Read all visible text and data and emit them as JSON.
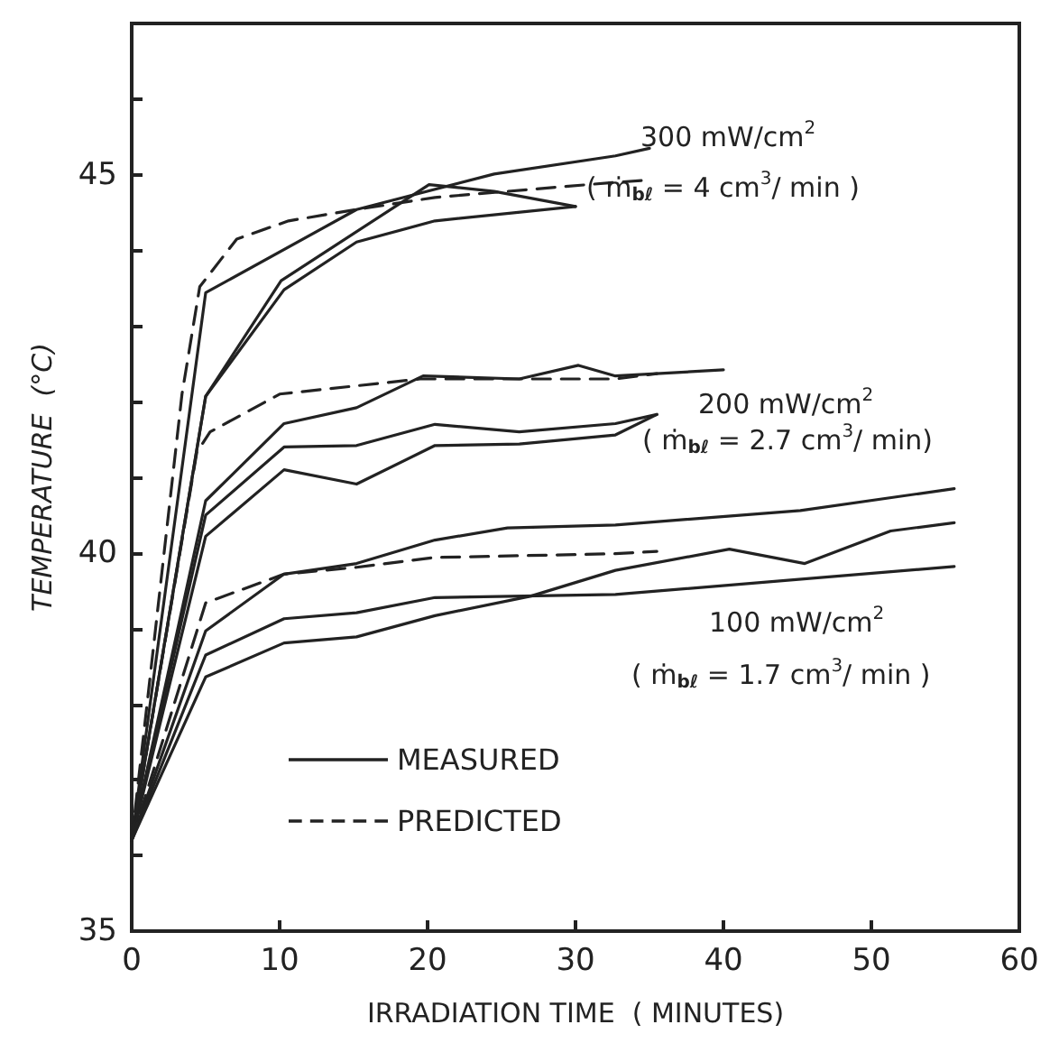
{
  "chart_data": {
    "type": "line",
    "xlabel": "IRRADIATION TIME  ( MINUTES)",
    "ylabel": "TEMPERATURE  (°C)",
    "xlim": [
      0,
      60
    ],
    "xticks": [
      0,
      10,
      20,
      30,
      40,
      50,
      60
    ],
    "ylim": [
      35,
      47
    ],
    "yticks": [
      35,
      {
        "value": 36,
        "label": null
      },
      {
        "value": 37,
        "label": null
      },
      {
        "value": 38,
        "label": null
      },
      {
        "value": 39,
        "label": null
      },
      40,
      {
        "value": 41,
        "label": null
      },
      {
        "value": 42,
        "label": null
      },
      {
        "value": 43,
        "label": null
      },
      {
        "value": 44,
        "label": null
      },
      45,
      {
        "value": 46,
        "label": null
      }
    ],
    "grid": false,
    "legend": "bottom left",
    "marker": "none",
    "series": [
      {
        "name": "MEASURED",
        "color": "#222222",
        "line_style": "solid",
        "x": [
          0,
          5,
          15.2,
          24.5,
          32.7,
          35
        ],
        "values": [
          36.2,
          43.44,
          44.54,
          45.01,
          45.25,
          45.35
        ]
      },
      {
        "color": "#222222",
        "line_style": "solid",
        "x": [
          0,
          5,
          10.1,
          20.1,
          24.5,
          30
        ],
        "values": [
          36.2,
          42.07,
          43.6,
          44.87,
          44.78,
          44.58
        ]
      },
      {
        "color": "#222222",
        "line_style": "solid",
        "x": [
          0,
          5,
          10.3,
          15.2,
          20.5,
          30
        ],
        "values": [
          36.2,
          42.07,
          43.48,
          44.11,
          44.39,
          44.58
        ]
      },
      {
        "color": "#222222",
        "line_style": "solid",
        "x": [
          0,
          5,
          10.3,
          15.2,
          19.7,
          26.2,
          30.2,
          32.7,
          40
        ],
        "values": [
          36.2,
          40.69,
          41.71,
          41.92,
          42.34,
          42.3,
          42.48,
          42.34,
          42.42
        ]
      },
      {
        "color": "#222222",
        "line_style": "solid",
        "x": [
          0,
          5,
          10.3,
          15.2,
          20.5,
          26.2,
          32.7,
          35.5
        ],
        "values": [
          36.2,
          40.5,
          41.4,
          41.42,
          41.7,
          41.6,
          41.71,
          41.83
        ]
      },
      {
        "color": "#222222",
        "line_style": "solid",
        "x": [
          0,
          5,
          10.3,
          15.2,
          20.5,
          26.2,
          32.7,
          35.5
        ],
        "values": [
          36.2,
          40.22,
          41.1,
          40.91,
          41.42,
          41.44,
          41.56,
          41.83
        ]
      },
      {
        "color": "#222222",
        "line_style": "solid",
        "x": [
          0,
          5,
          10.3,
          15.2,
          20.5,
          25.4,
          32.7,
          45.2,
          55.6
        ],
        "values": [
          36.2,
          38.97,
          39.72,
          39.86,
          40.17,
          40.33,
          40.37,
          40.56,
          40.85
        ]
      },
      {
        "color": "#222222",
        "line_style": "solid",
        "x": [
          0,
          5,
          10.3,
          15.2,
          20.5,
          32.7,
          55.6
        ],
        "values": [
          36.2,
          38.65,
          39.13,
          39.21,
          39.41,
          39.45,
          39.82
        ]
      },
      {
        "color": "#222222",
        "line_style": "solid",
        "x": [
          0,
          5,
          10.3,
          15.2,
          20.5,
          27,
          32.7,
          40.4,
          45.5,
          51.3,
          55.6
        ],
        "values": [
          36.2,
          38.36,
          38.81,
          38.89,
          39.17,
          39.43,
          39.77,
          40.05,
          39.86,
          40.29,
          40.4
        ]
      },
      {
        "name": "PREDICTED",
        "color": "#222222",
        "line_style": "dashed",
        "x": [
          0,
          3.4,
          4.6,
          7.1,
          10.6,
          15.2,
          20.5,
          32.7,
          35
        ],
        "values": [
          36.2,
          42.1,
          43.52,
          44.15,
          44.39,
          44.54,
          44.7,
          44.9,
          44.93
        ]
      },
      {
        "color": "#222222",
        "line_style": "dashed",
        "x": [
          0,
          4.4,
          5.3,
          10,
          19.5,
          32.7,
          35.5
        ],
        "values": [
          36.2,
          41.33,
          41.6,
          42.1,
          42.3,
          42.3,
          42.37
        ]
      },
      {
        "color": "#222222",
        "line_style": "dashed",
        "x": [
          0,
          5,
          10.3,
          15.2,
          20.5,
          32.7,
          35.5
        ],
        "values": [
          36.2,
          39.34,
          39.72,
          39.81,
          39.94,
          39.99,
          40.02
        ]
      }
    ],
    "annotations": [
      "300 mW/cm$^{2}$",
      "( ṁ$_{bℓ}$ = 4 cm$^{3}$/ min )",
      "200 mW/cm$^{2}$",
      "( ṁ$_{bℓ}$ = 2.7 cm$^{3}$/ min)",
      "100 mW/cm$^{2}$",
      "( ṁ$_{bℓ}$ = 1.7 cm$^{3}$/ min )"
    ]
  }
}
